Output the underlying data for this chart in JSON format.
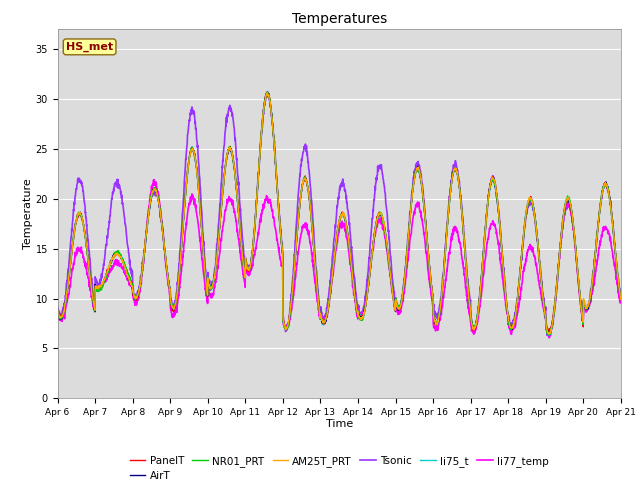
{
  "title": "Temperatures",
  "xlabel": "Time",
  "ylabel": "Temperature",
  "ylim": [
    0,
    37
  ],
  "yticks": [
    0,
    5,
    10,
    15,
    20,
    25,
    30,
    35
  ],
  "annotation_text": "HS_met",
  "annotation_color": "#8B0000",
  "annotation_bg": "#FFFF99",
  "bg_color": "#DCDCDC",
  "series_colors": [
    "#FF0000",
    "#00008B",
    "#00CC00",
    "#FFA500",
    "#9933FF",
    "#00CCCC",
    "#FF00FF"
  ],
  "series_names": [
    "PanelT",
    "AirT",
    "NR01_PRT",
    "AM25T_PRT",
    "Tsonic",
    "li75_t",
    "li77_temp"
  ],
  "series_linewidths": [
    1.0,
    1.0,
    1.0,
    1.0,
    1.2,
    1.0,
    1.2
  ],
  "n_days": 15,
  "pts_per_day": 144,
  "x_tick_labels": [
    "Apr 6",
    "Apr 7",
    "Apr 8",
    "Apr 9",
    "Apr 10",
    "Apr 11",
    "Apr 12",
    "Apr 13",
    "Apr 14",
    "Apr 15",
    "Apr 16",
    "Apr 17",
    "Apr 18",
    "Apr 19",
    "Apr 20",
    "Apr 21"
  ],
  "day_highs": [
    18.5,
    14.5,
    21.0,
    25.0,
    25.0,
    30.5,
    22.0,
    18.5,
    18.5,
    23.0,
    23.0,
    22.0,
    20.0,
    20.0,
    21.5
  ],
  "day_lows": [
    8.0,
    11.0,
    10.0,
    9.0,
    11.0,
    13.0,
    7.0,
    7.5,
    8.0,
    9.0,
    7.5,
    7.0,
    7.0,
    6.5,
    9.0
  ],
  "tsonic_high": [
    22.0,
    21.5,
    21.0,
    29.0,
    29.0,
    30.5,
    25.0,
    21.5,
    23.0,
    23.5,
    23.5,
    22.0,
    19.5,
    19.5,
    21.5
  ],
  "tsonic_low": [
    8.0,
    11.5,
    10.0,
    9.0,
    11.5,
    13.0,
    7.0,
    8.0,
    8.5,
    9.0,
    8.0,
    7.0,
    7.5,
    6.5,
    9.0
  ],
  "li77_high": [
    15.0,
    13.5,
    21.5,
    20.0,
    20.0,
    20.0,
    17.5,
    17.5,
    18.0,
    19.5,
    17.0,
    17.5,
    15.0,
    19.5,
    17.0
  ],
  "li77_low": [
    8.0,
    11.0,
    9.5,
    8.5,
    10.5,
    12.5,
    7.0,
    7.5,
    8.0,
    8.5,
    7.0,
    7.0,
    7.0,
    6.5,
    9.0
  ]
}
